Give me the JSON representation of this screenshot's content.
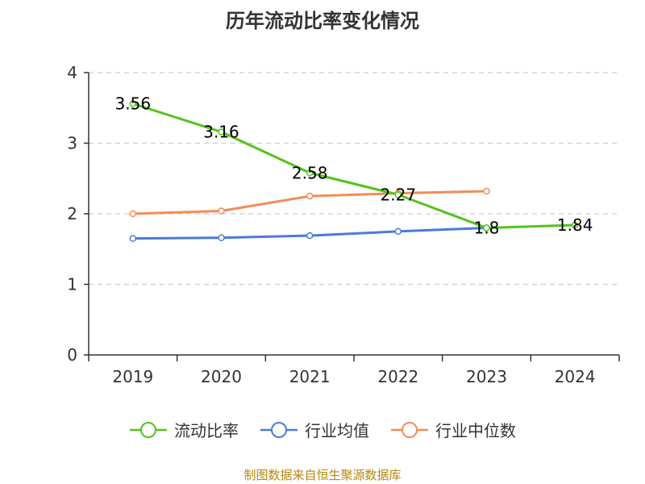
{
  "chart_data": {
    "type": "line",
    "title": "历年流动比率变化情况",
    "x": [
      "2019",
      "2020",
      "2021",
      "2022",
      "2023",
      "2024"
    ],
    "ylim": [
      0,
      4
    ],
    "yticks": [
      0,
      1,
      2,
      3,
      4
    ],
    "grid": true,
    "legend_position": "bottom",
    "series": [
      {
        "name": "流动比率",
        "color": "#52c41a",
        "values": [
          3.56,
          3.16,
          2.58,
          2.27,
          1.8,
          1.84
        ],
        "labels": [
          "3.56",
          "3.16",
          "2.58",
          "2.27",
          "1.8",
          "1.84"
        ]
      },
      {
        "name": "行业均值",
        "color": "#4a7bd8",
        "values": [
          1.65,
          1.66,
          1.69,
          1.75,
          1.8,
          null
        ]
      },
      {
        "name": "行业中位数",
        "color": "#f28c55",
        "values": [
          2.0,
          2.04,
          2.25,
          2.29,
          2.32,
          null
        ]
      }
    ]
  },
  "footer": {
    "source": "制图数据来自恒生聚源数据库"
  }
}
